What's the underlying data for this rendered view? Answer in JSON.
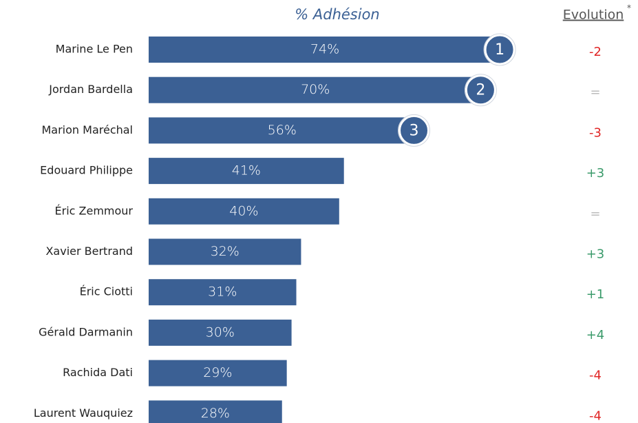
{
  "chart_data": {
    "type": "bar",
    "orientation": "horizontal",
    "title": "% Adhésion",
    "evolution_title": "Evolution",
    "evolution_note": "*",
    "color": "#3b6094",
    "categories": [
      "Marine Le Pen",
      "Jordan Bardella",
      "Marion Maréchal",
      "Edouard Philippe",
      "Éric Zemmour",
      "Xavier Bertrand",
      "Éric Ciotti",
      "Gérald Darmanin",
      "Rachida Dati",
      "Laurent Wauquiez"
    ],
    "values": [
      74,
      70,
      56,
      41,
      40,
      32,
      31,
      30,
      29,
      28
    ],
    "value_labels": [
      "74%",
      "70%",
      "56%",
      "41%",
      "40%",
      "32%",
      "31%",
      "30%",
      "29%",
      "28%"
    ],
    "ranks": [
      "1",
      "2",
      "3"
    ],
    "evolution": [
      "-2",
      "=",
      "-3",
      "+3",
      "=",
      "+3",
      "+1",
      "+4",
      "-4",
      "-4"
    ]
  }
}
